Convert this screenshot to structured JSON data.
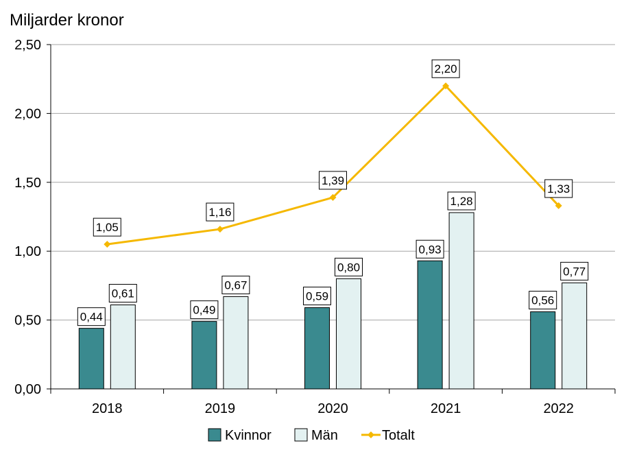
{
  "chart_data": {
    "type": "bar",
    "title": "Miljarder kronor",
    "xlabel": "",
    "ylabel": "Miljarder kronor",
    "categories": [
      "2018",
      "2019",
      "2020",
      "2021",
      "2022"
    ],
    "ylim": [
      0,
      2.5
    ],
    "yticks": [
      0,
      0.5,
      1.0,
      1.5,
      2.0,
      2.5
    ],
    "ytick_labels": [
      "0,00",
      "0,50",
      "1,00",
      "1,50",
      "2,00",
      "2,50"
    ],
    "grid": true,
    "legend_position": "bottom",
    "series": [
      {
        "name": "Kvinnor",
        "kind": "bar",
        "color": "#3a8a8f",
        "values": [
          0.44,
          0.49,
          0.59,
          0.93,
          0.56
        ],
        "labels": [
          "0,44",
          "0,49",
          "0,59",
          "0,93",
          "0,56"
        ]
      },
      {
        "name": "Män",
        "kind": "bar",
        "color": "#e3f1f1",
        "values": [
          0.61,
          0.67,
          0.8,
          1.28,
          0.77
        ],
        "labels": [
          "0,61",
          "0,67",
          "0,80",
          "1,28",
          "0,77"
        ]
      },
      {
        "name": "Totalt",
        "kind": "line",
        "color": "#f5b800",
        "values": [
          1.05,
          1.16,
          1.39,
          2.2,
          1.33
        ],
        "labels": [
          "1,05",
          "1,16",
          "1,39",
          "2,20",
          "1,33"
        ]
      }
    ]
  }
}
